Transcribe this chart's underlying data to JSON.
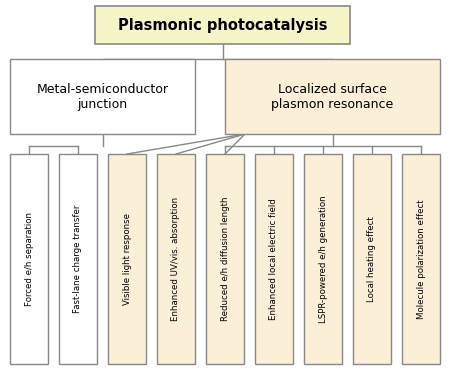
{
  "title": "Plasmonic photocatalysis",
  "mid_left": "Metal-semiconductor\njunction",
  "mid_right": "Localized surface\nplasmon resonance",
  "leaves": [
    "Forced e/h separation",
    "Fast-lane charge transfer",
    "Visible light response",
    "Enhanced UV/vis. absorption",
    "Reduced e/h diffusion length",
    "Enhanced local electric field",
    "LSPR-powered e/h generation",
    "Local heating effect",
    "Molecule polarization effect"
  ],
  "leaf_colors": [
    "#ffffff",
    "#ffffff",
    "#fcefd8",
    "#fcefd8",
    "#fcefd8",
    "#fcefd8",
    "#fcefd8",
    "#fcefd8",
    "#fcefd8"
  ],
  "title_bg": "#f5f5c8",
  "mid_left_bg": "#ffffff",
  "mid_right_bg": "#fcefd8",
  "border_color": "#888888",
  "fig_bg": "#ffffff",
  "fig_w": 4.5,
  "fig_h": 3.74,
  "dpi": 100
}
